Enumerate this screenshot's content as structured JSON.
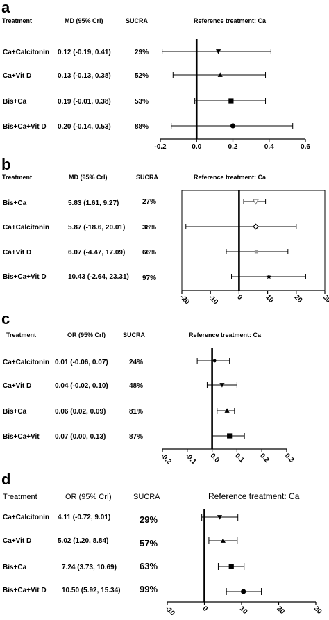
{
  "panels": [
    {
      "letter": "a",
      "headers": {
        "treatment": "Treatment",
        "estimate": "MD (95% CrI)",
        "sucra": "SUCRA",
        "reference": "Reference treatment:  Ca"
      },
      "rows": [
        {
          "treatment": "Ca+Calcitonin",
          "estimate_text": "0.12 (-0.19, 0.41)",
          "sucra": "29%",
          "point": 0.12,
          "lo": -0.19,
          "hi": 0.41,
          "marker": "triangle-down"
        },
        {
          "treatment": "Ca+Vit D",
          "estimate_text": "0.13 (-0.13, 0.38)",
          "sucra": "52%",
          "point": 0.13,
          "lo": -0.13,
          "hi": 0.38,
          "marker": "triangle-up"
        },
        {
          "treatment": "Bis+Ca",
          "estimate_text": "0.19 (-0.01, 0.38)",
          "sucra": "53%",
          "point": 0.19,
          "lo": -0.01,
          "hi": 0.38,
          "marker": "square"
        },
        {
          "treatment": "Bis+Ca+Vit D",
          "estimate_text": "0.20 (-0.14, 0.53)",
          "sucra": "88%",
          "point": 0.2,
          "lo": -0.14,
          "hi": 0.53,
          "marker": "circle"
        }
      ],
      "xlim": [
        -0.2,
        0.6
      ],
      "ticks": [
        -0.2,
        0.0,
        0.2,
        0.4,
        0.6
      ],
      "tick_labels": [
        "-0.2",
        "0.0",
        "0.2",
        "0.4",
        "0.6"
      ]
    },
    {
      "letter": "b",
      "headers": {
        "treatment": "Treatment",
        "estimate": "MD (95% CrI)",
        "sucra": "SUCRA",
        "reference": "Reference treatment:  Ca"
      },
      "rows": [
        {
          "treatment": "Bis+Ca",
          "estimate_text": "5.83 (1.61, 9.27)",
          "sucra": "27%",
          "point": 5.83,
          "lo": 1.61,
          "hi": 9.27,
          "marker": "triangle-down-open"
        },
        {
          "treatment": "Ca+Calcitonin",
          "estimate_text": "5.87 (-18.6, 20.01)",
          "sucra": "38%",
          "point": 5.87,
          "lo": -18.6,
          "hi": 20.01,
          "marker": "diamond-open"
        },
        {
          "treatment": "Ca+Vit D",
          "estimate_text": "6.07 (-4.47, 17.09)",
          "sucra": "66%",
          "point": 6.07,
          "lo": -4.47,
          "hi": 17.09,
          "marker": "square-gray"
        },
        {
          "treatment": "Bis+Ca+Vit D",
          "estimate_text": "10.43 (-2.64, 23.31)",
          "sucra": "97%",
          "point": 10.43,
          "lo": -2.64,
          "hi": 23.31,
          "marker": "star"
        }
      ],
      "xlim": [
        -20,
        30
      ],
      "ticks": [
        -20,
        -10,
        0,
        10,
        20,
        30
      ],
      "tick_labels": [
        "-20",
        "-10",
        "0",
        "10",
        "20",
        "30"
      ]
    },
    {
      "letter": "c",
      "headers": {
        "treatment": "Treatment",
        "estimate": "OR (95% CrI)",
        "sucra": "SUCRA",
        "reference": "Reference treatment: Ca"
      },
      "rows": [
        {
          "treatment": "Ca+Calcitonin",
          "estimate_text": "0.01 (-0.06, 0.07)",
          "sucra": "24%",
          "point": 0.01,
          "lo": -0.06,
          "hi": 0.07,
          "marker": "dot"
        },
        {
          "treatment": "Ca+Vit D",
          "estimate_text": "0.04 (-0.02, 0.10)",
          "sucra": "48%",
          "point": 0.04,
          "lo": -0.02,
          "hi": 0.1,
          "marker": "triangle-down"
        },
        {
          "treatment": "Bis+Ca",
          "estimate_text": "0.06 (0.02, 0.09)",
          "sucra": "81%",
          "point": 0.06,
          "lo": 0.02,
          "hi": 0.09,
          "marker": "triangle-up"
        },
        {
          "treatment": "Bis+Ca+Vit",
          "estimate_text": "0.07 (0.00, 0.13)",
          "sucra": "87%",
          "point": 0.07,
          "lo": 0.0,
          "hi": 0.13,
          "marker": "square"
        }
      ],
      "xlim": [
        -0.2,
        0.3
      ],
      "ticks": [
        -0.2,
        -0.1,
        0.0,
        0.1,
        0.2,
        0.3
      ],
      "tick_labels": [
        "-0.2",
        "-0.1",
        "0.0",
        "0.1",
        "0.2",
        "0.3"
      ]
    },
    {
      "letter": "d",
      "headers": {
        "treatment": "Treatment",
        "estimate": "OR (95% CrI)",
        "sucra": "SUCRA",
        "reference": "Reference treatment:  Ca"
      },
      "rows": [
        {
          "treatment": "Ca+Calcitonin",
          "estimate_text": "4.11 (-0.72, 9.01)",
          "sucra": "29%",
          "point": 4.11,
          "lo": -0.72,
          "hi": 9.01,
          "marker": "triangle-down"
        },
        {
          "treatment": "Ca+Vit D",
          "estimate_text": "5.02 (1.20, 8.84)",
          "sucra": "57%",
          "point": 5.02,
          "lo": 1.2,
          "hi": 8.84,
          "marker": "triangle-up"
        },
        {
          "treatment": "Bis+Ca",
          "estimate_text": "7.24 (3.73, 10.69)",
          "sucra": "63%",
          "point": 7.24,
          "lo": 3.73,
          "hi": 10.69,
          "marker": "square"
        },
        {
          "treatment": "Bis+Ca+Vit D",
          "estimate_text": "10.50 (5.92, 15.34)",
          "sucra": "99%",
          "point": 10.5,
          "lo": 5.92,
          "hi": 15.34,
          "marker": "circle"
        }
      ],
      "xlim": [
        -10,
        30
      ],
      "ticks": [
        -10,
        0,
        10,
        20,
        30
      ],
      "tick_labels": [
        "-10",
        "0",
        "10",
        "20",
        "30"
      ]
    }
  ],
  "chart_data": [
    {
      "type": "forest",
      "panel": "a",
      "title": "",
      "xlabel": "",
      "reference": "Ca",
      "categories": [
        "Ca+Calcitonin",
        "Ca+Vit D",
        "Bis+Ca",
        "Bis+Ca+Vit D"
      ],
      "point": [
        0.12,
        0.13,
        0.19,
        0.2
      ],
      "lower": [
        -0.19,
        -0.13,
        -0.01,
        -0.14
      ],
      "upper": [
        0.41,
        0.38,
        0.38,
        0.53
      ],
      "sucra": [
        29,
        52,
        53,
        88
      ],
      "xlim": [
        -0.2,
        0.6
      ]
    },
    {
      "type": "forest",
      "panel": "b",
      "title": "",
      "xlabel": "",
      "reference": "Ca",
      "categories": [
        "Bis+Ca",
        "Ca+Calcitonin",
        "Ca+Vit D",
        "Bis+Ca+Vit D"
      ],
      "point": [
        5.83,
        5.87,
        6.07,
        10.43
      ],
      "lower": [
        1.61,
        -18.6,
        -4.47,
        -2.64
      ],
      "upper": [
        9.27,
        20.01,
        17.09,
        23.31
      ],
      "sucra": [
        27,
        38,
        66,
        97
      ],
      "xlim": [
        -20,
        30
      ]
    },
    {
      "type": "forest",
      "panel": "c",
      "title": "",
      "xlabel": "",
      "reference": "Ca",
      "categories": [
        "Ca+Calcitonin",
        "Ca+Vit D",
        "Bis+Ca",
        "Bis+Ca+Vit"
      ],
      "point": [
        0.01,
        0.04,
        0.06,
        0.07
      ],
      "lower": [
        -0.06,
        -0.02,
        0.02,
        0.0
      ],
      "upper": [
        0.07,
        0.1,
        0.09,
        0.13
      ],
      "sucra": [
        24,
        48,
        81,
        87
      ],
      "xlim": [
        -0.2,
        0.3
      ]
    },
    {
      "type": "forest",
      "panel": "d",
      "title": "",
      "xlabel": "",
      "reference": "Ca",
      "categories": [
        "Ca+Calcitonin",
        "Ca+Vit D",
        "Bis+Ca",
        "Bis+Ca+Vit D"
      ],
      "point": [
        4.11,
        5.02,
        7.24,
        10.5
      ],
      "lower": [
        -0.72,
        1.2,
        3.73,
        5.92
      ],
      "upper": [
        9.01,
        8.84,
        10.69,
        15.34
      ],
      "sucra": [
        29,
        57,
        63,
        99
      ],
      "xlim": [
        -10,
        30
      ]
    }
  ]
}
